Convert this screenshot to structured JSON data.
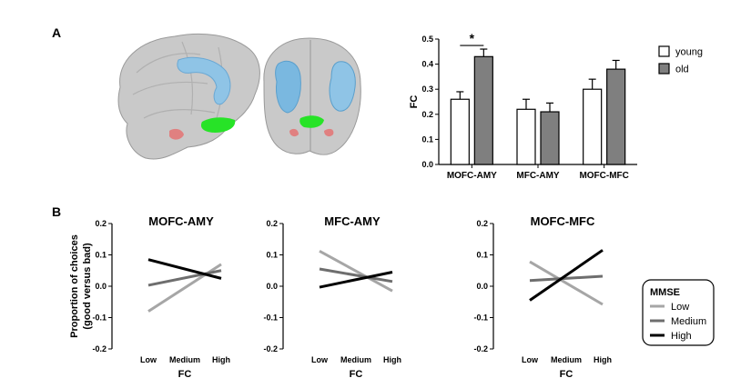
{
  "panel_labels": [
    "A",
    "B"
  ],
  "chart_data": [
    {
      "type": "bar",
      "panel": "A",
      "title": "",
      "xlabel": "",
      "ylabel": "FC",
      "ylim": [
        0,
        0.5
      ],
      "yticks": [
        "0.0",
        "0.1",
        "0.2",
        "0.3",
        "0.4",
        "0.5"
      ],
      "categories": [
        "MOFC-AMY",
        "MFC-AMY",
        "MOFC-MFC"
      ],
      "series": [
        {
          "name": "young",
          "color": "#ffffff",
          "values": [
            0.26,
            0.22,
            0.3
          ],
          "errors": [
            0.03,
            0.04,
            0.04
          ]
        },
        {
          "name": "old",
          "color": "#7f7f7f",
          "values": [
            0.43,
            0.21,
            0.38
          ],
          "errors": [
            0.03,
            0.035,
            0.035
          ]
        }
      ],
      "annotations": [
        {
          "text": "*",
          "category": "MOFC-AMY"
        }
      ],
      "legend": "top-right",
      "grid": false
    },
    {
      "type": "line",
      "panel": "B",
      "title": "MOFC-AMY",
      "xlabel": "FC",
      "ylabel": "Proportion of choices (good versus bad)",
      "ylim": [
        -0.2,
        0.2
      ],
      "yticks": [
        "0.2",
        "0.1",
        "0.0",
        "-0.1",
        "-0.2"
      ],
      "x": [
        "Low",
        "Medium",
        "High"
      ],
      "series": [
        {
          "name": "Low",
          "color": "#a6a6a6",
          "values": [
            -0.08,
            null,
            0.07
          ]
        },
        {
          "name": "Medium",
          "color": "#6e6e6e",
          "values": [
            0.003,
            null,
            0.05
          ]
        },
        {
          "name": "High",
          "color": "#000000",
          "values": [
            0.085,
            null,
            0.025
          ]
        }
      ],
      "grid": false
    },
    {
      "type": "line",
      "panel": "B",
      "title": "MFC-AMY",
      "xlabel": "FC",
      "ylabel": "",
      "ylim": [
        -0.2,
        0.2
      ],
      "yticks": [
        "0.2",
        "0.1",
        "0.0",
        "-0.1",
        "-0.2"
      ],
      "x": [
        "Low",
        "Medium",
        "High"
      ],
      "series": [
        {
          "name": "Low",
          "color": "#a6a6a6",
          "values": [
            0.112,
            null,
            -0.015
          ]
        },
        {
          "name": "Medium",
          "color": "#6e6e6e",
          "values": [
            0.055,
            null,
            0.015
          ]
        },
        {
          "name": "High",
          "color": "#000000",
          "values": [
            -0.003,
            null,
            0.045
          ]
        }
      ],
      "grid": false
    },
    {
      "type": "line",
      "panel": "B",
      "title": "MOFC-MFC",
      "xlabel": "FC",
      "ylabel": "",
      "ylim": [
        -0.2,
        0.2
      ],
      "yticks": [
        "0.2",
        "0.1",
        "0.0",
        "-0.1",
        "-0.2"
      ],
      "x": [
        "Low",
        "Medium",
        "High"
      ],
      "series": [
        {
          "name": "Low",
          "color": "#a6a6a6",
          "values": [
            0.078,
            null,
            -0.058
          ]
        },
        {
          "name": "Medium",
          "color": "#6e6e6e",
          "values": [
            0.018,
            null,
            0.032
          ]
        },
        {
          "name": "High",
          "color": "#000000",
          "values": [
            -0.045,
            null,
            0.115
          ]
        }
      ],
      "grid": false
    }
  ],
  "legend_b": {
    "title": "MMSE",
    "items": [
      {
        "label": "Low",
        "color": "#a6a6a6"
      },
      {
        "label": "Medium",
        "color": "#6e6e6e"
      },
      {
        "label": "High",
        "color": "#000000"
      }
    ]
  }
}
